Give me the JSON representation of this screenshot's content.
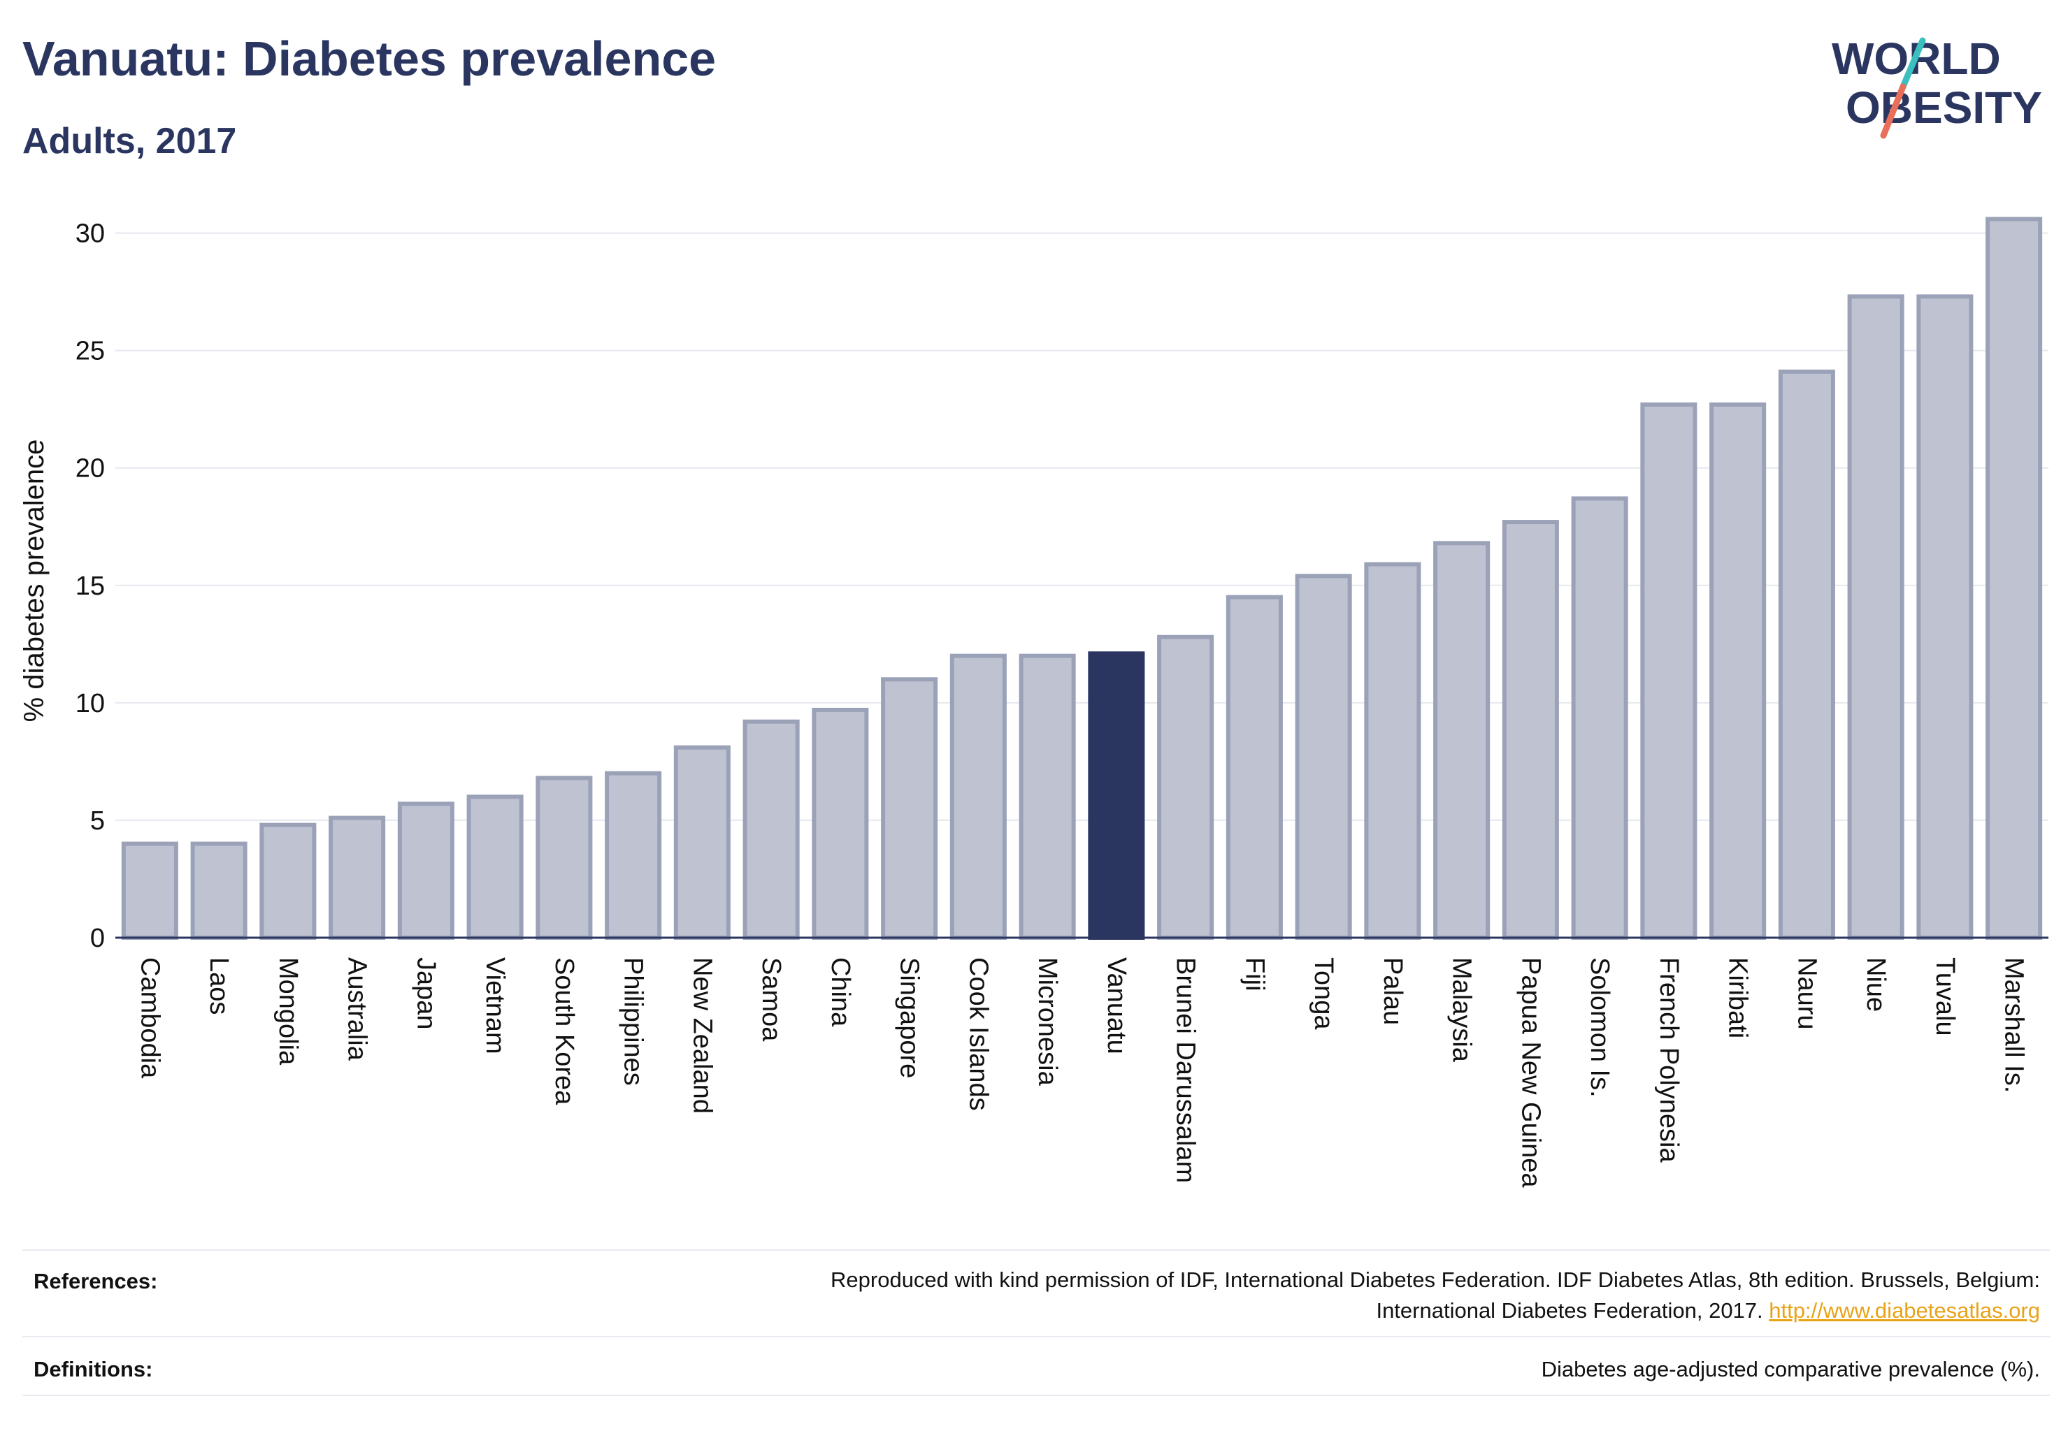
{
  "header": {
    "title": "Vanuatu: Diabetes prevalence",
    "subtitle": "Adults, 2017"
  },
  "logo": {
    "line1": "WORLD",
    "line2": "OBESITY",
    "accent_teal": "#3bbfbf",
    "accent_coral": "#e8705a"
  },
  "colors": {
    "bar_fill": "#bfc3d1",
    "bar_stroke": "#9ba2b8",
    "highlight": "#2a3560",
    "grid": "#e6e8ef",
    "text": "#2a3560"
  },
  "chart_data": {
    "type": "bar",
    "title": "Vanuatu: Diabetes prevalence",
    "subtitle": "Adults, 2017",
    "ylabel": "% diabetes prevalence",
    "xlabel": "",
    "ylim": [
      0,
      31
    ],
    "yticks": [
      0,
      5,
      10,
      15,
      20,
      25,
      30
    ],
    "grid": true,
    "highlight": "Vanuatu",
    "categories": [
      "Cambodia",
      "Laos",
      "Mongolia",
      "Australia",
      "Japan",
      "Vietnam",
      "South Korea",
      "Philippines",
      "New Zealand",
      "Samoa",
      "China",
      "Singapore",
      "Cook Islands",
      "Micronesia",
      "Vanuatu",
      "Brunei Darussalam",
      "Fiji",
      "Tonga",
      "Palau",
      "Malaysia",
      "Papua New Guinea",
      "Solomon Is.",
      "French Polynesia",
      "Kiribati",
      "Nauru",
      "Niue",
      "Tuvalu",
      "Marshall Is."
    ],
    "values": [
      4.0,
      4.0,
      4.8,
      5.1,
      5.7,
      6.0,
      6.8,
      7.0,
      8.1,
      9.2,
      9.7,
      11.0,
      12.0,
      12.0,
      12.1,
      12.8,
      14.5,
      15.4,
      15.9,
      16.8,
      17.7,
      18.7,
      22.7,
      22.7,
      24.1,
      27.3,
      27.3,
      30.6
    ]
  },
  "footer": {
    "references_label": "References:",
    "references_text_1": "Reproduced with kind permission of IDF, International Diabetes Federation. IDF Diabetes Atlas, 8th edition. Brussels, Belgium:",
    "references_text_2": "International Diabetes Federation, 2017. ",
    "references_link": "http://www.diabetesatlas.org",
    "definitions_label": "Definitions:",
    "definitions_text": "Diabetes age-adjusted comparative prevalence (%)."
  }
}
